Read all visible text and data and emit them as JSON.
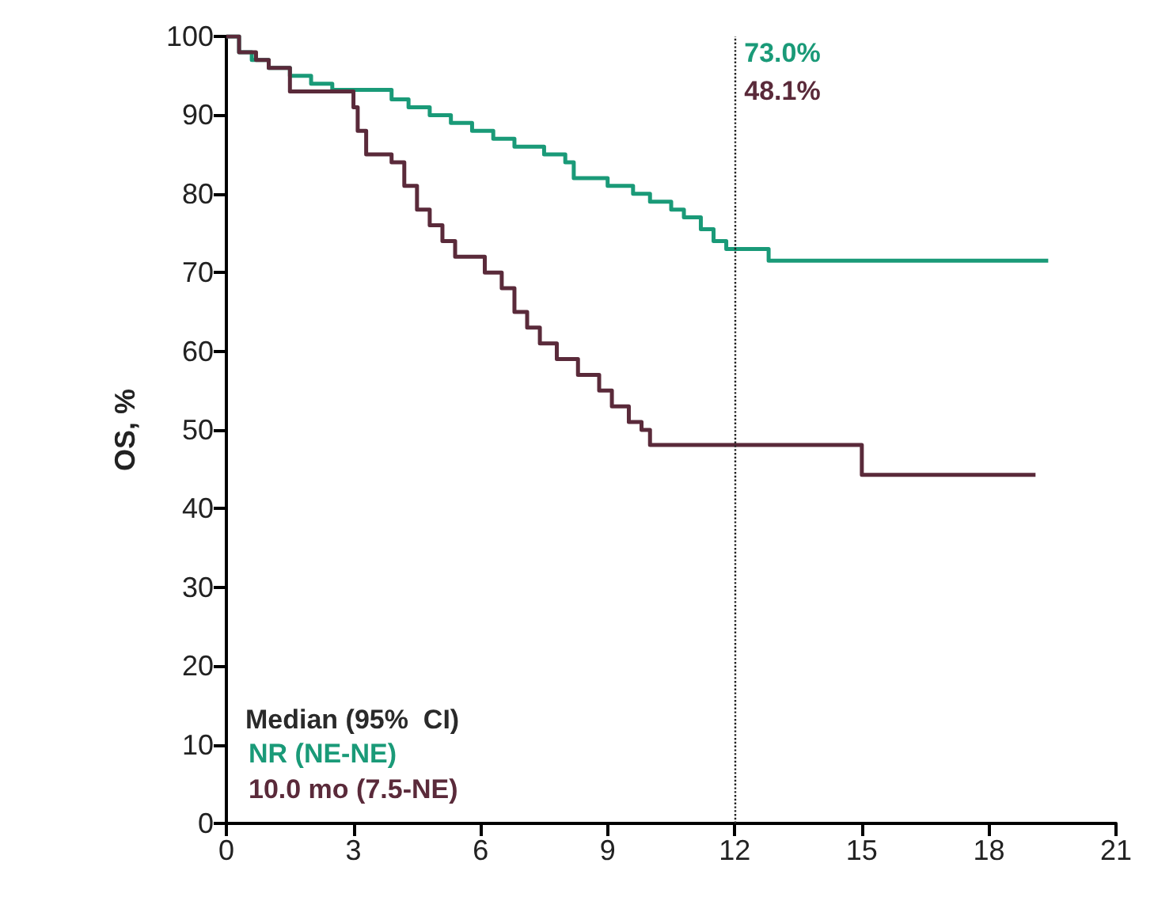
{
  "chart_data": {
    "type": "step",
    "ylabel": "OS, %",
    "legend_title": "Median (95%  CI)",
    "legend": "bottom left",
    "xlim": [
      0,
      21
    ],
    "xticks": [
      0,
      3,
      6,
      9,
      12,
      15,
      18,
      21
    ],
    "ylim": [
      0,
      100
    ],
    "yticks": [
      0,
      10,
      20,
      30,
      40,
      50,
      60,
      70,
      80,
      90,
      100
    ],
    "grid": false,
    "marker": "none",
    "series": [
      {
        "name": "NR (NE-NE)",
        "color": "#1a9a78",
        "x": [
          0,
          0.3,
          0.6,
          1,
          1.5,
          2,
          2.5,
          3.9,
          4.3,
          4.8,
          5.3,
          5.8,
          6.3,
          6.8,
          7.5,
          8,
          8.2,
          9,
          9.6,
          10,
          10.5,
          10.8,
          11.2,
          11.5,
          11.8,
          12.8,
          19.4
        ],
        "values": [
          100,
          98,
          97,
          96,
          95,
          94,
          93.2,
          92,
          91,
          90,
          89,
          88,
          87,
          86,
          85,
          84,
          82,
          81,
          80,
          79,
          78,
          77,
          75.5,
          74,
          73,
          71.5,
          71.5
        ]
      },
      {
        "name": "10.0 mo (7.5-NE)",
        "color": "#5a2a3a",
        "x": [
          0,
          0.3,
          0.7,
          1,
          1.5,
          3,
          3.1,
          3.3,
          3.9,
          4.2,
          4.5,
          4.8,
          5.1,
          5.4,
          6.1,
          6.5,
          6.8,
          7.1,
          7.4,
          7.8,
          8.3,
          8.8,
          9.1,
          9.5,
          9.8,
          10,
          15,
          19.1
        ],
        "values": [
          100,
          98,
          97,
          96,
          93,
          91,
          88,
          85,
          84,
          81,
          78,
          76,
          74,
          72,
          70,
          68,
          65,
          63,
          61,
          59,
          57,
          55,
          53,
          51,
          50,
          48.1,
          44.3,
          44.3
        ]
      }
    ],
    "ref_lines": [
      {
        "axis": "x",
        "value": 12,
        "line_style": "dotted",
        "color": "#222222"
      }
    ],
    "annotations": [
      "73.0%",
      "48.1%"
    ]
  }
}
